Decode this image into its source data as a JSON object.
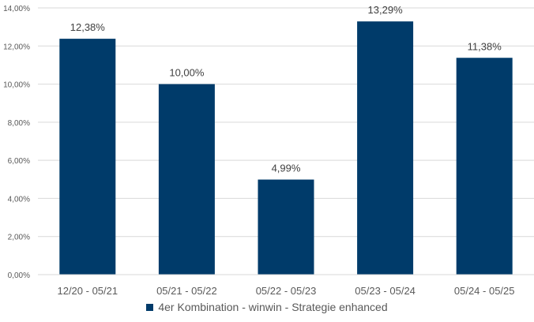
{
  "chart_data": {
    "type": "bar",
    "categories": [
      "12/20 - 05/21",
      "05/21 - 05/22",
      "05/22 - 05/23",
      "05/23 - 05/24",
      "05/24 - 05/25"
    ],
    "series": [
      {
        "name": "4er Kombination - winwin - Strategie enhanced",
        "values": [
          12.38,
          10.0,
          4.99,
          13.29,
          11.38
        ],
        "data_labels": [
          "12,38%",
          "10,00%",
          "4,99%",
          "13,29%",
          "11,38%"
        ]
      }
    ],
    "ylim": [
      0,
      14
    ],
    "ytick_values": [
      0,
      2,
      4,
      6,
      8,
      10,
      12,
      14
    ],
    "ytick_labels": [
      "0,00%",
      "2,00%",
      "4,00%",
      "6,00%",
      "8,00%",
      "10,00%",
      "12,00%",
      "14,00%"
    ],
    "grid": true,
    "legend_position": "bottom",
    "colors": {
      "bar": "#003B6A",
      "grid": "#D9D9D9",
      "text": "#595959",
      "data_label": "#404040"
    }
  }
}
